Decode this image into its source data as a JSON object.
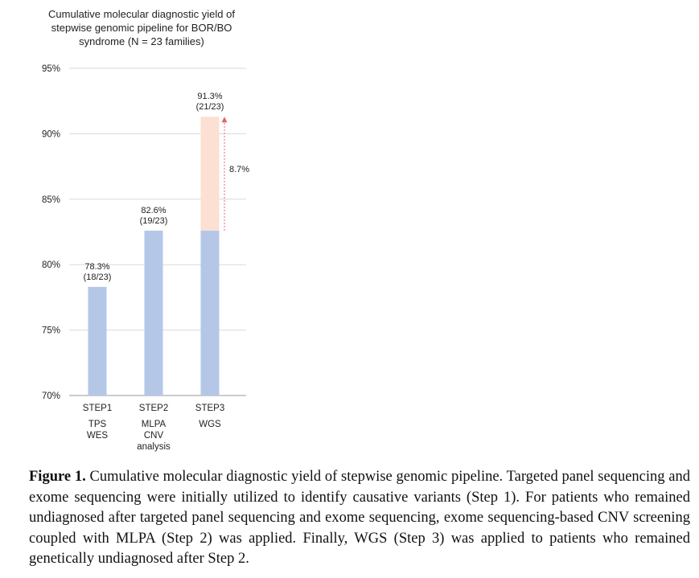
{
  "chart_data": {
    "type": "bar",
    "title": "Cumulative molecular diagnostic yield of stepwise genomic pipeline for BOR/BO syndrome (N = 23 families)",
    "title_lines": [
      "Cumulative molecular diagnostic yield of",
      "stepwise genomic pipeline for BOR/BO",
      "syndrome (N = 23 families)"
    ],
    "ylim": [
      70,
      95
    ],
    "yticks": [
      70,
      75,
      80,
      85,
      90,
      95
    ],
    "ytick_labels": [
      "70%",
      "75%",
      "80%",
      "85%",
      "90%",
      "95%"
    ],
    "grid": true,
    "categories": [
      {
        "step": "STEP1",
        "sub": [
          "TPS",
          "WES"
        ]
      },
      {
        "step": "STEP2",
        "sub": [
          "MLPA",
          "CNV",
          "analysis"
        ]
      },
      {
        "step": "STEP3",
        "sub": [
          "WGS"
        ]
      }
    ],
    "series": [
      {
        "values": [
          78.3,
          82.6,
          82.6
        ],
        "color": "#b4c7e7"
      },
      {
        "values": [
          0,
          0,
          8.7
        ],
        "color": "#fbe0d3"
      }
    ],
    "data_labels": [
      {
        "value": "78.3%",
        "count": "(18/23)",
        "y": 78.3
      },
      {
        "value": "82.6%",
        "count": "(19/23)",
        "y": 82.6
      },
      {
        "value": "91.3%",
        "count": "(21/23)",
        "y": 91.3
      }
    ],
    "increment": {
      "label": "8.7%",
      "from": 82.6,
      "to": 91.3,
      "color": "#e06666"
    }
  },
  "caption": {
    "label": "Figure 1.",
    "text": "Cumulative molecular diagnostic yield of stepwise genomic pipeline. Targeted panel sequencing and exome sequencing were initially utilized to identify causative variants (Step 1). For patients who remained undiagnosed after targeted panel sequencing and exome sequencing, exome sequencing-based CNV screening coupled with MLPA (Step 2) was applied. Finally, WGS (Step 3) was applied to patients who remained genetically undiagnosed after Step 2."
  }
}
